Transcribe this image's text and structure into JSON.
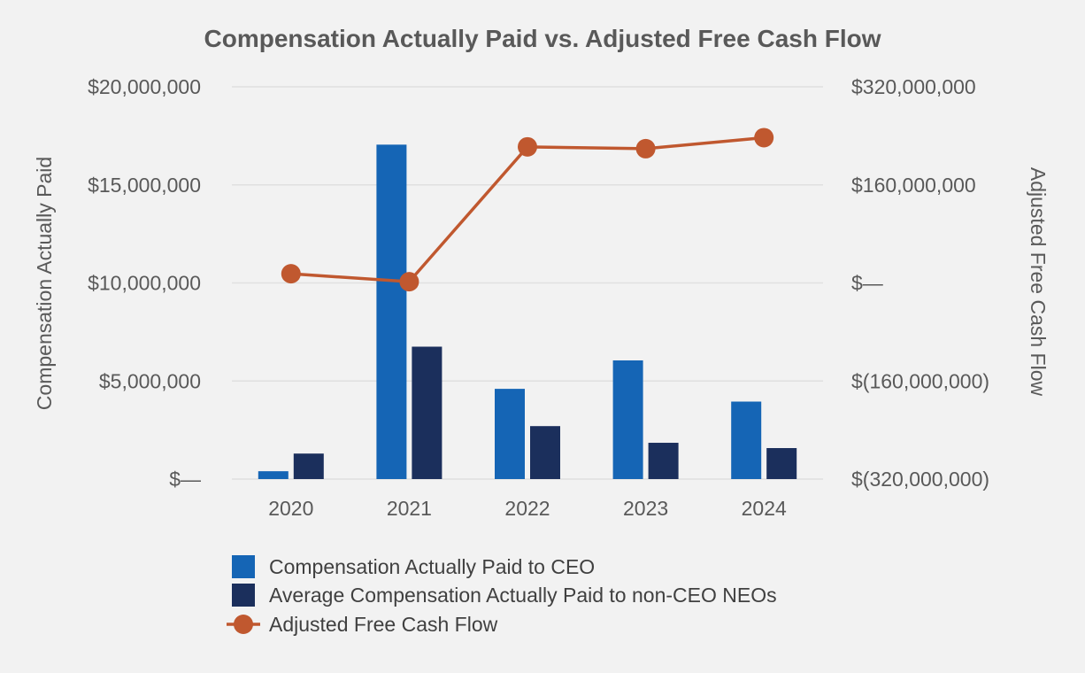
{
  "chart_data": {
    "type": "bar",
    "title": "Compensation Actually Paid vs. Adjusted Free Cash Flow",
    "categories": [
      "2020",
      "2021",
      "2022",
      "2023",
      "2024"
    ],
    "y_left": {
      "label": "Compensation Actually Paid",
      "range": [
        0,
        20000000
      ],
      "ticks": [
        0,
        5000000,
        10000000,
        15000000,
        20000000
      ],
      "tick_labels": [
        "$—",
        "$5,000,000",
        "$10,000,000",
        "$15,000,000",
        "$20,000,000"
      ]
    },
    "y_right": {
      "label": "Adjusted Free Cash Flow",
      "range": [
        -320000000,
        320000000
      ],
      "ticks": [
        -320000000,
        -160000000,
        0,
        160000000,
        320000000
      ],
      "tick_labels": [
        "$(320,000,000)",
        "$(160,000,000)",
        "$—",
        "$160,000,000",
        "$320,000,000"
      ]
    },
    "grid": true,
    "legend_position": "bottom",
    "series": [
      {
        "name": "Compensation Actually Paid to CEO",
        "type": "bar",
        "axis": "left",
        "color": "#1565b5",
        "values": [
          400000,
          17050000,
          4600000,
          6050000,
          3950000
        ]
      },
      {
        "name": "Average Compensation Actually Paid to non-CEO NEOs",
        "type": "bar",
        "axis": "left",
        "color": "#1b2f5c",
        "values": [
          1300000,
          6750000,
          2700000,
          1850000,
          1580000
        ]
      },
      {
        "name": "Adjusted Free Cash Flow",
        "type": "line",
        "axis": "right",
        "color": "#c0582f",
        "values": [
          15000000,
          2000000,
          222000000,
          219000000,
          237000000
        ]
      }
    ]
  }
}
